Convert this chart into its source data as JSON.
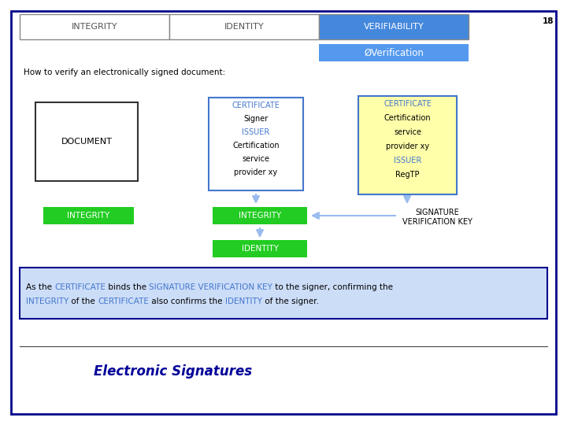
{
  "bg_color": "#ffffff",
  "border_color": "#00008B",
  "title_tabs": [
    "INTEGRITY",
    "IDENTITY",
    "VERIFIABILITY"
  ],
  "tab_colors": [
    "#ffffff",
    "#ffffff",
    "#4488DD"
  ],
  "tab_text_colors": [
    "#555555",
    "#555555",
    "#ffffff"
  ],
  "verification_text": "ØVerification",
  "verification_bg": "#5599EE",
  "subtitle": "How to verify an electronically signed document:",
  "slide_number": "18",
  "doc_box_label": "DOCUMENT",
  "cert1_lines": [
    "CERTIFICATE",
    "Signer",
    "ISSUER",
    "Certification",
    "service",
    "provider xy"
  ],
  "cert1_line_colors": [
    "#4477CC",
    "#000000",
    "#4477CC",
    "#000000",
    "#000000",
    "#000000"
  ],
  "cert1_bg": "#ffffff",
  "cert1_border": "#4477CC",
  "cert2_lines": [
    "CERTIFICATE",
    "Certification",
    "service",
    "provider xy",
    "ISSUER",
    "RegTP"
  ],
  "cert2_line_colors": [
    "#4477CC",
    "#000000",
    "#000000",
    "#000000",
    "#4477CC",
    "#000000"
  ],
  "cert2_bg": "#FFFFAA",
  "cert2_border": "#4477CC",
  "integrity_box_color": "#22CC22",
  "identity_box_color": "#22CC22",
  "integrity_left_color": "#22CC22",
  "sig_key_text": "SIGNATURE\nVERIFICATION KEY",
  "arrow_color": "#99BBEE",
  "bottom_box_bg": "#CCDDF8",
  "bottom_line1": [
    {
      "text": "As the ",
      "color": "#000000"
    },
    {
      "text": "CERTIFICATE",
      "color": "#4477CC"
    },
    {
      "text": " binds the ",
      "color": "#000000"
    },
    {
      "text": "SIGNATURE VERIFICATION KEY",
      "color": "#4477CC"
    },
    {
      "text": " to the signer, confirming the",
      "color": "#000000"
    }
  ],
  "bottom_line2": [
    {
      "text": "INTEGRITY",
      "color": "#4477CC"
    },
    {
      "text": " of the ",
      "color": "#000000"
    },
    {
      "text": "CERTIFICATE",
      "color": "#4477CC"
    },
    {
      "text": " also confirms the ",
      "color": "#000000"
    },
    {
      "text": "IDENTITY",
      "color": "#4477CC"
    },
    {
      "text": " of the signer.",
      "color": "#000000"
    }
  ],
  "footer_text": "Electronic Signatures"
}
